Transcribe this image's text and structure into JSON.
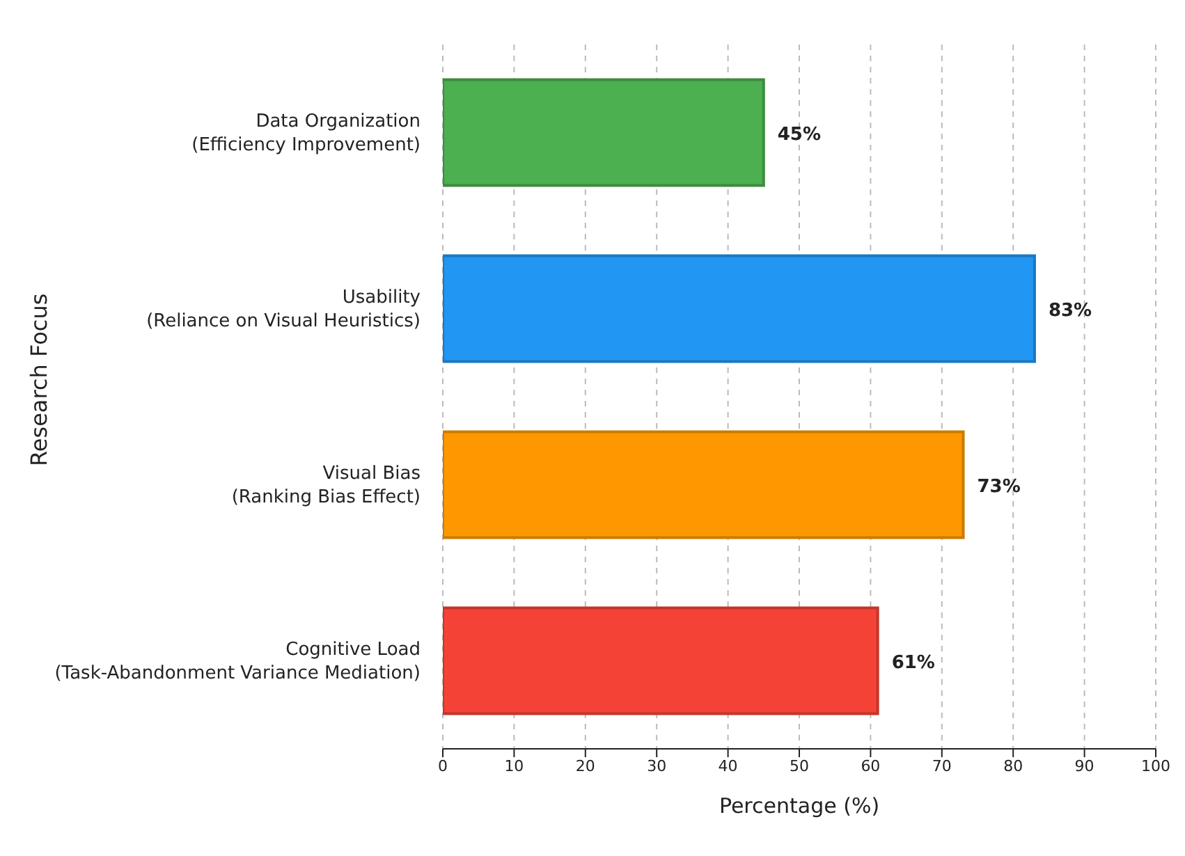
{
  "chart_data": {
    "type": "bar",
    "orientation": "horizontal",
    "xlabel": "Percentage (%)",
    "ylabel": "Research Focus",
    "categories": [
      "Data Organization\n(Efficiency Improvement)",
      "Usability\n(Reliance on Visual Heuristics)",
      "Visual Bias\n(Ranking Bias Effect)",
      "Cognitive Load\n(Task-Abandonment Variance Mediation)"
    ],
    "values": [
      45,
      83,
      73,
      61
    ],
    "colors": [
      "#4caf50",
      "#2196f3",
      "#ff9800",
      "#f44336"
    ],
    "value_labels": [
      "45%",
      "83%",
      "73%",
      "61%"
    ],
    "xlim": [
      0,
      100
    ],
    "xticks": [
      0,
      10,
      20,
      30,
      40,
      50,
      60,
      70,
      80,
      90,
      100
    ],
    "grid": "x"
  }
}
